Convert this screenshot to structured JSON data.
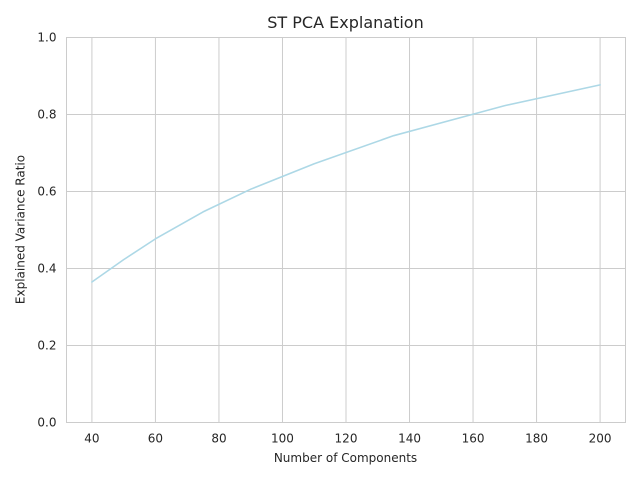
{
  "chart_data": {
    "type": "line",
    "title": "ST PCA Explanation",
    "xlabel": "Number of Components",
    "ylabel": "Explained Variance Ratio",
    "xlim": [
      32,
      208
    ],
    "ylim": [
      0.0,
      1.0
    ],
    "x_ticks": [
      40,
      60,
      80,
      100,
      120,
      140,
      160,
      180,
      200
    ],
    "x_tick_labels": [
      "40",
      "60",
      "80",
      "100",
      "120",
      "140",
      "160",
      "180",
      "200"
    ],
    "y_ticks": [
      0.0,
      0.2,
      0.4,
      0.6,
      0.8,
      1.0
    ],
    "y_tick_labels": [
      "0.0",
      "0.2",
      "0.4",
      "0.6",
      "0.8",
      "1.0"
    ],
    "grid": true,
    "line_color": "#add8e6",
    "grid_color": "#cccccc",
    "series": [
      {
        "x": [
          40,
          50,
          60,
          75,
          90,
          110,
          135,
          170,
          200
        ],
        "y": [
          0.365,
          0.423,
          0.477,
          0.547,
          0.606,
          0.672,
          0.745,
          0.823,
          0.877
        ]
      }
    ]
  }
}
